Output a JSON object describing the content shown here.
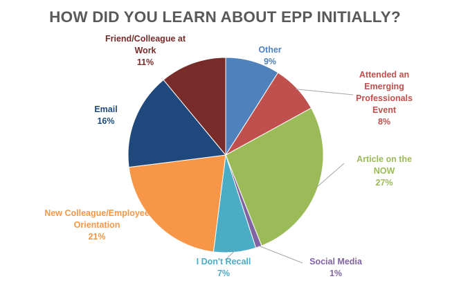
{
  "chart_data": {
    "type": "pie",
    "title": "HOW DID YOU LEARN ABOUT EPP INITIALLY?",
    "unit": "%",
    "start_angle_deg": 0,
    "slices": [
      {
        "label": "Other",
        "value": 9,
        "value_label": "9%",
        "color": "#4F81BD",
        "label_color": "#4F81BD"
      },
      {
        "label": "Attended an Emerging Professionals Event",
        "value": 8,
        "value_label": "8%",
        "color": "#C0504D",
        "label_color": "#C0504D"
      },
      {
        "label": "Article on the NOW",
        "value": 27,
        "value_label": "27%",
        "color": "#9BBB59",
        "label_color": "#9BBB59"
      },
      {
        "label": "Social Media",
        "value": 1,
        "value_label": "1%",
        "color": "#8064A2",
        "label_color": "#8064A2"
      },
      {
        "label": "I Don't Recall",
        "value": 7,
        "value_label": "7%",
        "color": "#4BACC6",
        "label_color": "#4BACC6"
      },
      {
        "label": "New Colleague/Employee Orientation",
        "value": 21,
        "value_label": "21%",
        "color": "#F79646",
        "label_color": "#F79646"
      },
      {
        "label": "Email",
        "value": 16,
        "value_label": "16%",
        "color": "#1F497D",
        "label_color": "#1F497D"
      },
      {
        "label": "Friend/Colleague at Work",
        "value": 11,
        "value_label": "11%",
        "color": "#772C2A",
        "label_color": "#772C2A"
      }
    ]
  }
}
